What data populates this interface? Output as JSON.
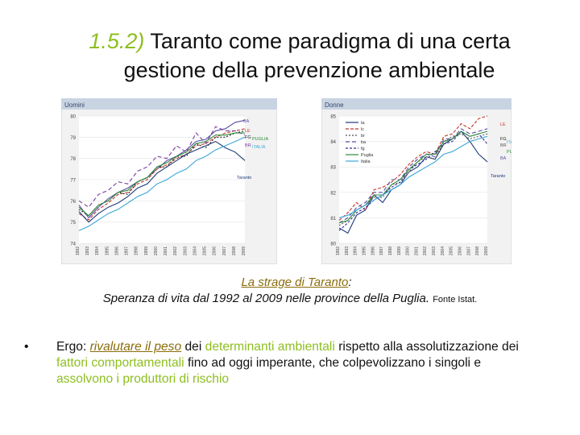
{
  "slide": {
    "title_number": "1.5.2)",
    "title_line1": "Taranto come paradigma di una certa",
    "title_line2": "gestione della prevenzione ambientale",
    "caption_title": "La strage di Taranto",
    "caption_colon": ":",
    "caption_line2": "Speranza di vita dal 1992 al 2009 nelle province della Puglia.",
    "caption_source": "Fonte Istat.",
    "bullet_char": "•",
    "body": {
      "p1": "Ergo: ",
      "p2": "rivalutare il peso",
      "p3": " dei ",
      "p4": "determinanti ambientali",
      "p5": " rispetto alla assolutizzazione dei ",
      "p6": "fattori comportamentali",
      "p7": " fino ad oggi imperante, che colpevolizzano i singoli e ",
      "p8": "assolvono i produttori di rischio"
    }
  },
  "chart_data": [
    {
      "type": "line",
      "title": "Uomini",
      "ylim": [
        74,
        80
      ],
      "yticks": [
        "80",
        "79",
        "78",
        "77",
        "76",
        "75",
        "74"
      ],
      "x": [
        "1992",
        "1993",
        "1994",
        "1995",
        "1996",
        "1997",
        "1998",
        "1999",
        "2000",
        "2001",
        "2002",
        "2003",
        "2004",
        "2005",
        "2006",
        "2007",
        "2008",
        "2009"
      ],
      "series": [
        {
          "name": "BA",
          "color": "#5b4da6",
          "dash": "",
          "values": [
            75.8,
            75.2,
            75.7,
            76.1,
            76.4,
            76.6,
            76.9,
            77.1,
            77.5,
            77.9,
            78.1,
            78.4,
            78.8,
            78.9,
            79.3,
            79.4,
            79.7,
            79.8
          ]
        },
        {
          "name": "LE",
          "color": "#c0392b",
          "dash": "4,2",
          "values": [
            75.4,
            75.1,
            75.6,
            75.9,
            76.3,
            76.4,
            76.8,
            77.0,
            77.5,
            77.7,
            78.0,
            78.2,
            78.6,
            78.7,
            79.0,
            79.2,
            79.3,
            79.4
          ]
        },
        {
          "name": "FG",
          "color": "#222222",
          "dash": "2,2",
          "values": [
            75.6,
            75.3,
            75.8,
            76.0,
            76.4,
            76.3,
            76.9,
            77.1,
            77.6,
            77.6,
            78.1,
            78.1,
            78.7,
            78.5,
            79.0,
            79.0,
            79.2,
            79.3
          ]
        },
        {
          "name": "BR",
          "color": "#7b3fa0",
          "dash": "5,3",
          "values": [
            76.0,
            75.7,
            76.3,
            76.5,
            76.9,
            76.8,
            77.4,
            77.6,
            78.1,
            78.0,
            78.6,
            78.3,
            79.2,
            78.7,
            79.5,
            79.3,
            79.3,
            79.1
          ]
        },
        {
          "name": "TA",
          "color": "#1f3b7a",
          "dash": "",
          "values": [
            75.5,
            75.0,
            75.4,
            75.7,
            75.9,
            76.2,
            76.6,
            76.8,
            77.3,
            77.6,
            77.9,
            78.2,
            78.4,
            78.6,
            78.8,
            78.5,
            78.3,
            77.9
          ]
        },
        {
          "name": "PUGLIA",
          "color": "#2e8b3a",
          "dash": "",
          "values": [
            75.7,
            75.3,
            75.8,
            76.0,
            76.4,
            76.5,
            76.9,
            77.1,
            77.6,
            77.8,
            78.1,
            78.3,
            78.7,
            78.8,
            79.1,
            79.1,
            79.2,
            79.2
          ]
        },
        {
          "name": "ITALIA",
          "color": "#3aa6d9",
          "dash": "",
          "values": [
            74.6,
            74.8,
            75.1,
            75.4,
            75.6,
            75.9,
            76.2,
            76.4,
            76.8,
            77.0,
            77.3,
            77.5,
            77.9,
            78.1,
            78.4,
            78.6,
            78.8,
            79.0
          ]
        }
      ],
      "labels": [
        "BA",
        "LE",
        "FG",
        "PUGLIA",
        "BR",
        "ITALIA",
        "Taranto"
      ]
    },
    {
      "type": "line",
      "title": "Donne",
      "ylim": [
        80,
        85
      ],
      "yticks": [
        "85",
        "84",
        "83",
        "82",
        "81",
        "80"
      ],
      "x": [
        "1992",
        "1993",
        "1994",
        "1995",
        "1996",
        "1997",
        "1998",
        "1999",
        "2000",
        "2001",
        "2002",
        "2003",
        "2004",
        "2005",
        "2006",
        "2007",
        "2008",
        "2009"
      ],
      "legend": [
        "ta",
        "lc",
        "br",
        "ba",
        "fg",
        "Puglia",
        "Italia"
      ],
      "series": [
        {
          "name": "ta",
          "color": "#1f3b7a",
          "dash": "",
          "values": [
            80.6,
            80.4,
            81.1,
            81.3,
            81.9,
            81.6,
            82.1,
            82.3,
            82.8,
            83.0,
            83.4,
            83.3,
            83.9,
            84.1,
            84.4,
            84.0,
            83.5,
            83.2
          ]
        },
        {
          "name": "lc",
          "color": "#c0392b",
          "dash": "4,2",
          "values": [
            80.9,
            81.2,
            81.6,
            81.3,
            82.1,
            82.2,
            82.4,
            82.7,
            83.1,
            83.4,
            83.6,
            83.5,
            84.2,
            84.3,
            84.7,
            84.5,
            84.9,
            85.0
          ]
        },
        {
          "name": "br",
          "color": "#555555",
          "dash": "2,2",
          "values": [
            80.7,
            80.9,
            81.3,
            81.5,
            81.8,
            81.8,
            82.3,
            82.4,
            82.8,
            83.2,
            83.4,
            83.3,
            84.0,
            84.2,
            84.3,
            84.1,
            84.2,
            84.3
          ]
        },
        {
          "name": "ba",
          "color": "#5b4da6",
          "dash": "5,3",
          "values": [
            80.8,
            81.0,
            81.4,
            81.6,
            82.0,
            82.0,
            82.5,
            82.5,
            83.0,
            83.3,
            83.5,
            83.4,
            84.1,
            84.1,
            84.5,
            84.3,
            84.4,
            84.5
          ]
        },
        {
          "name": "fg",
          "color": "#2f2f9a",
          "dash": "3,2",
          "values": [
            80.5,
            80.8,
            81.2,
            81.4,
            81.7,
            81.9,
            82.2,
            82.4,
            82.9,
            83.1,
            83.3,
            83.6,
            83.9,
            84.0,
            84.4,
            84.2,
            84.3,
            83.9
          ]
        },
        {
          "name": "Puglia",
          "color": "#2e8b3a",
          "dash": "",
          "values": [
            80.8,
            80.9,
            81.3,
            81.5,
            81.9,
            81.9,
            82.3,
            82.5,
            82.9,
            83.2,
            83.5,
            83.5,
            84.0,
            84.1,
            84.4,
            84.2,
            84.3,
            84.4
          ]
        },
        {
          "name": "Italia",
          "color": "#3aa6d9",
          "dash": "",
          "values": [
            81.0,
            81.1,
            81.3,
            81.5,
            81.7,
            81.9,
            82.1,
            82.3,
            82.6,
            82.8,
            83.0,
            83.2,
            83.5,
            83.6,
            83.8,
            84.0,
            84.1,
            84.2
          ]
        }
      ],
      "labels": [
        "LE",
        "FG",
        "BR",
        "ITALIA",
        "PUGLIA",
        "BA",
        "Taranto"
      ]
    }
  ]
}
